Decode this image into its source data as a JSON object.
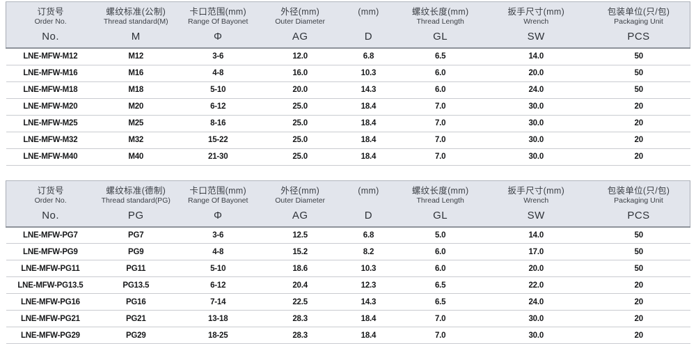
{
  "colors": {
    "header_bg": "#e2e5ec",
    "header_border_bottom": "#8e939b",
    "row_divider": "#c9cbd0",
    "text": "#17181a"
  },
  "tables": [
    {
      "id": "metric",
      "columns": [
        {
          "cn": "订货号",
          "en": "Order No.",
          "sym": "No."
        },
        {
          "cn": "螺纹标准(公制)",
          "en": "Thread standard(M)",
          "sym": "M"
        },
        {
          "cn": "卡口范围(mm)",
          "en": "Range Of Bayonet",
          "sym": "Φ"
        },
        {
          "cn": "外径(mm)",
          "en": "Outer Diameter",
          "sym": "AG"
        },
        {
          "cn": "(mm)",
          "en": "",
          "sym": "D"
        },
        {
          "cn": "螺纹长度(mm)",
          "en": "Thread Length",
          "sym": "GL"
        },
        {
          "cn": "扳手尺寸(mm)",
          "en": "Wrench",
          "sym": "SW"
        },
        {
          "cn": "包装单位(只/包)",
          "en": "Packaging Unit",
          "sym": "PCS"
        }
      ],
      "rows": [
        [
          "LNE-MFW-M12",
          "M12",
          "3-6",
          "12.0",
          "6.8",
          "6.5",
          "14.0",
          "50"
        ],
        [
          "LNE-MFW-M16",
          "M16",
          "4-8",
          "16.0",
          "10.3",
          "6.0",
          "20.0",
          "50"
        ],
        [
          "LNE-MFW-M18",
          "M18",
          "5-10",
          "20.0",
          "14.3",
          "6.0",
          "24.0",
          "50"
        ],
        [
          "LNE-MFW-M20",
          "M20",
          "6-12",
          "25.0",
          "18.4",
          "7.0",
          "30.0",
          "20"
        ],
        [
          "LNE-MFW-M25",
          "M25",
          "8-16",
          "25.0",
          "18.4",
          "7.0",
          "30.0",
          "20"
        ],
        [
          "LNE-MFW-M32",
          "M32",
          "15-22",
          "25.0",
          "18.4",
          "7.0",
          "30.0",
          "20"
        ],
        [
          "LNE-MFW-M40",
          "M40",
          "21-30",
          "25.0",
          "18.4",
          "7.0",
          "30.0",
          "20"
        ]
      ]
    },
    {
      "id": "pg",
      "columns": [
        {
          "cn": "订货号",
          "en": "Order No.",
          "sym": "No."
        },
        {
          "cn": "螺纹标准(德制)",
          "en": "Thread standard(PG)",
          "sym": "PG"
        },
        {
          "cn": "卡口范围(mm)",
          "en": "Range Of Bayonet",
          "sym": "Φ"
        },
        {
          "cn": "外径(mm)",
          "en": "Outer Diameter",
          "sym": "AG"
        },
        {
          "cn": "(mm)",
          "en": "",
          "sym": "D"
        },
        {
          "cn": "螺纹长度(mm)",
          "en": "Thread Length",
          "sym": "GL"
        },
        {
          "cn": "扳手尺寸(mm)",
          "en": "Wrench",
          "sym": "SW"
        },
        {
          "cn": "包装单位(只/包)",
          "en": "Packaging Unit",
          "sym": "PCS"
        }
      ],
      "rows": [
        [
          "LNE-MFW-PG7",
          "PG7",
          "3-6",
          "12.5",
          "6.8",
          "5.0",
          "14.0",
          "50"
        ],
        [
          "LNE-MFW-PG9",
          "PG9",
          "4-8",
          "15.2",
          "8.2",
          "6.0",
          "17.0",
          "50"
        ],
        [
          "LNE-MFW-PG11",
          "PG11",
          "5-10",
          "18.6",
          "10.3",
          "6.0",
          "20.0",
          "50"
        ],
        [
          "LNE-MFW-PG13.5",
          "PG13.5",
          "6-12",
          "20.4",
          "12.3",
          "6.5",
          "22.0",
          "20"
        ],
        [
          "LNE-MFW-PG16",
          "PG16",
          "7-14",
          "22.5",
          "14.3",
          "6.5",
          "24.0",
          "20"
        ],
        [
          "LNE-MFW-PG21",
          "PG21",
          "13-18",
          "28.3",
          "18.4",
          "7.0",
          "30.0",
          "20"
        ],
        [
          "LNE-MFW-PG29",
          "PG29",
          "18-25",
          "28.3",
          "18.4",
          "7.0",
          "30.0",
          "20"
        ]
      ]
    }
  ]
}
